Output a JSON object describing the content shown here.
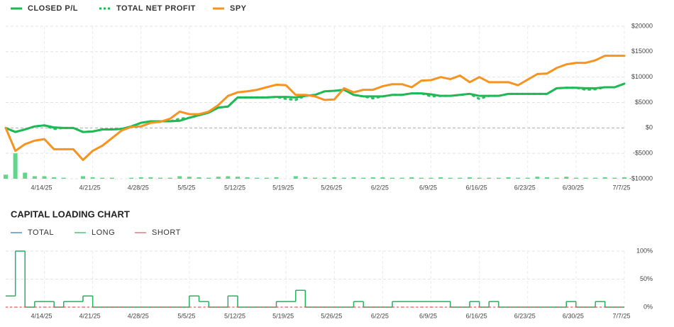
{
  "chart_data": [
    {
      "type": "line",
      "categories": [
        null,
        null,
        null,
        null,
        "4/14/25",
        null,
        null,
        null,
        null,
        "4/21/25",
        null,
        null,
        null,
        null,
        "4/28/25",
        null,
        null,
        null,
        null,
        "5/5/25",
        null,
        null,
        null,
        null,
        "5/12/25",
        null,
        null,
        null,
        null,
        "5/19/25",
        null,
        null,
        null,
        null,
        "5/26/25",
        null,
        null,
        null,
        null,
        "6/2/25",
        null,
        null,
        null,
        null,
        "6/9/25",
        null,
        null,
        null,
        null,
        "6/16/25",
        null,
        null,
        null,
        null,
        "6/23/25",
        null,
        null,
        null,
        null,
        "6/30/25",
        null,
        null,
        null,
        null,
        "7/7/25"
      ],
      "series": [
        {
          "name": "CLOSED P/L",
          "color": "#1db954",
          "style": "solid",
          "values": [
            0,
            -800,
            -300,
            300,
            500,
            100,
            0,
            0,
            -800,
            -700,
            -300,
            -300,
            -200,
            300,
            1000,
            1300,
            1300,
            1300,
            1400,
            2000,
            2500,
            3000,
            4000,
            4200,
            6000,
            6000,
            6000,
            6000,
            6100,
            6100,
            6000,
            6300,
            6500,
            7200,
            7300,
            7500,
            6500,
            6200,
            6200,
            6200,
            6500,
            6500,
            6800,
            6800,
            6600,
            6300,
            6300,
            6500,
            6700,
            6300,
            6300,
            6300,
            6700,
            6700,
            6700,
            6700,
            6700,
            7800,
            7900,
            7900,
            7800,
            7800,
            8000,
            8000,
            8700
          ]
        },
        {
          "name": "TOTAL NET PROFIT",
          "color": "#1db954",
          "style": "dotted",
          "values": [
            0,
            -800,
            -300,
            300,
            500,
            -200,
            0,
            0,
            -800,
            -700,
            -300,
            -300,
            -200,
            300,
            1000,
            1300,
            1300,
            1300,
            1800,
            2000,
            2500,
            3000,
            4000,
            4200,
            6000,
            6000,
            6000,
            6000,
            6100,
            5700,
            5500,
            6300,
            6500,
            7200,
            7300,
            7500,
            6500,
            6200,
            5800,
            6200,
            6500,
            6500,
            6800,
            6800,
            6200,
            6300,
            6300,
            6500,
            6700,
            5700,
            6300,
            6300,
            6700,
            6700,
            6700,
            6700,
            6700,
            7800,
            7900,
            7900,
            7500,
            7600,
            8000,
            8000,
            8700
          ]
        },
        {
          "name": "SPY",
          "color": "#f7931e",
          "style": "solid",
          "values": [
            0,
            -4500,
            -3200,
            -2500,
            -2200,
            -4200,
            -4200,
            -4200,
            -6300,
            -4500,
            -3500,
            -2000,
            -500,
            200,
            300,
            1000,
            1200,
            1800,
            3200,
            2700,
            2700,
            3200,
            4500,
            6300,
            7000,
            7200,
            7500,
            8000,
            8500,
            8400,
            6500,
            6500,
            6200,
            5500,
            5600,
            7800,
            7000,
            7500,
            7500,
            8200,
            8600,
            8600,
            8000,
            9300,
            9400,
            10000,
            9600,
            10300,
            9000,
            10000,
            9000,
            9000,
            9000,
            8400,
            9500,
            10600,
            10700,
            11800,
            12500,
            12800,
            12800,
            13300,
            14200,
            14200,
            14200
          ]
        },
        {
          "type": "bar",
          "color": "#5fd68a",
          "values": [
            -9200,
            -5000,
            -8800,
            -9500,
            -9500,
            -9700,
            -9800,
            null,
            -9500,
            -9700,
            -9800,
            -9800,
            null,
            -9800,
            -9700,
            -9700,
            -9800,
            -9800,
            -9500,
            -9600,
            -9700,
            -9800,
            -9600,
            -9500,
            -9600,
            -9700,
            -9800,
            -9800,
            -9700,
            null,
            -9500,
            -9700,
            -9800,
            -9800,
            -9700,
            -9800,
            -9700,
            -9800,
            -9700,
            -9700,
            -9800,
            -9800,
            -9700,
            -9800,
            -9800,
            -9700,
            -9800,
            -9800,
            -9700,
            -9800,
            -9800,
            -9800,
            -9700,
            -9800,
            -9800,
            -9600,
            -9700,
            -9800,
            -9600,
            -9800,
            -9800,
            -9800,
            -9700,
            -9800,
            -9700
          ]
        }
      ],
      "ylim": [
        -10000,
        20000
      ],
      "yticks": [
        {
          "value": 20000,
          "label": "$20000"
        },
        {
          "value": 15000,
          "label": "$15000"
        },
        {
          "value": 10000,
          "label": "$10000"
        },
        {
          "value": 5000,
          "label": "$5000"
        },
        {
          "value": 0,
          "label": "$0"
        },
        {
          "value": -5000,
          "label": "-$5000"
        },
        {
          "value": -10000,
          "label": "-$10000"
        }
      ],
      "grid": true,
      "legend": "top"
    },
    {
      "type": "line",
      "title": "CAPITAL LOADING CHART",
      "step": true,
      "categories": [
        null,
        null,
        null,
        null,
        "4/14/25",
        null,
        null,
        null,
        null,
        "4/21/25",
        null,
        null,
        null,
        null,
        "4/28/25",
        null,
        null,
        null,
        null,
        "5/5/25",
        null,
        null,
        null,
        null,
        "5/12/25",
        null,
        null,
        null,
        null,
        "5/19/25",
        null,
        null,
        null,
        null,
        "5/26/25",
        null,
        null,
        null,
        null,
        "6/2/25",
        null,
        null,
        null,
        null,
        "6/9/25",
        null,
        null,
        null,
        null,
        "6/16/25",
        null,
        null,
        null,
        null,
        "6/23/25",
        null,
        null,
        null,
        null,
        "6/30/25",
        null,
        null,
        null,
        null,
        "7/7/25"
      ],
      "series": [
        {
          "name": "TOTAL",
          "color": "#1f77b4",
          "style": "solid",
          "values": [
            20,
            100,
            0,
            10,
            10,
            0,
            10,
            10,
            20,
            0,
            0,
            0,
            0,
            0,
            0,
            0,
            0,
            0,
            0,
            20,
            10,
            0,
            0,
            20,
            0,
            0,
            0,
            0,
            10,
            10,
            30,
            0,
            0,
            0,
            0,
            0,
            10,
            0,
            0,
            0,
            10,
            10,
            10,
            10,
            10,
            10,
            0,
            0,
            10,
            0,
            10,
            0,
            0,
            0,
            0,
            0,
            0,
            0,
            10,
            0,
            0,
            10,
            0,
            0,
            0
          ]
        },
        {
          "name": "LONG",
          "color": "#1db954",
          "style": "solid",
          "values": [
            20,
            100,
            0,
            10,
            10,
            0,
            10,
            10,
            20,
            0,
            0,
            0,
            0,
            0,
            0,
            0,
            0,
            0,
            0,
            20,
            10,
            0,
            0,
            20,
            0,
            0,
            0,
            0,
            10,
            10,
            30,
            0,
            0,
            0,
            0,
            0,
            10,
            0,
            0,
            0,
            10,
            10,
            10,
            10,
            10,
            10,
            0,
            0,
            10,
            0,
            10,
            0,
            0,
            0,
            0,
            0,
            0,
            0,
            10,
            0,
            0,
            10,
            0,
            0,
            0
          ]
        },
        {
          "name": "SHORT",
          "color": "#e0575b",
          "style": "dashed",
          "values": [
            0,
            0,
            0,
            0,
            0,
            0,
            0,
            0,
            0,
            0,
            0,
            0,
            0,
            0,
            0,
            0,
            0,
            0,
            0,
            0,
            0,
            0,
            0,
            0,
            0,
            0,
            0,
            0,
            0,
            0,
            0,
            0,
            0,
            0,
            0,
            0,
            0,
            0,
            0,
            0,
            0,
            0,
            0,
            0,
            0,
            0,
            0,
            0,
            0,
            0,
            0,
            0,
            0,
            0,
            0,
            0,
            0,
            0,
            0,
            0,
            0,
            0,
            0,
            0,
            0
          ]
        }
      ],
      "ylim": [
        0,
        100
      ],
      "yticks": [
        {
          "value": 100,
          "label": "100%"
        },
        {
          "value": 50,
          "label": "50%"
        },
        {
          "value": 0,
          "label": "0%"
        }
      ],
      "grid": true,
      "legend": "top"
    }
  ]
}
